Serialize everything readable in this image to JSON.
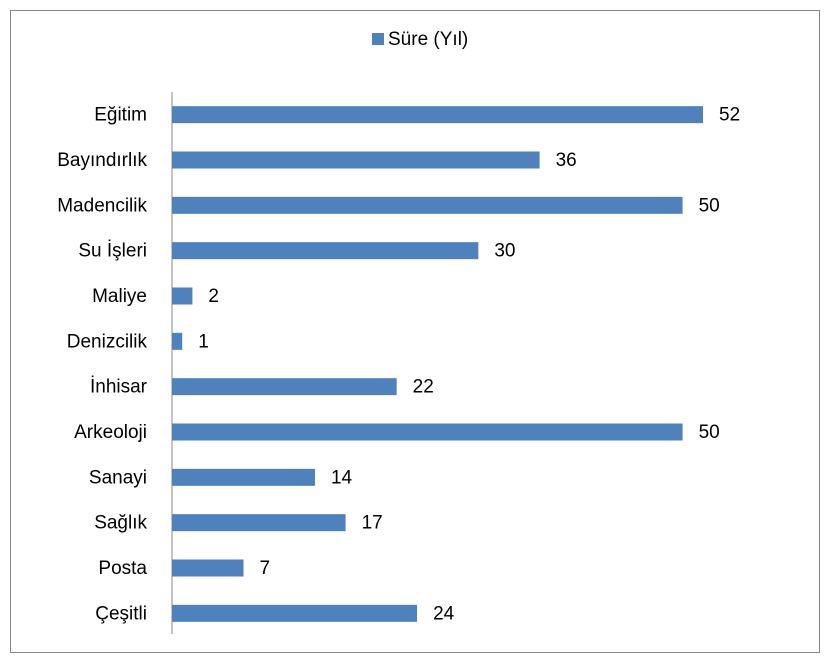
{
  "chart_data": {
    "type": "bar",
    "orientation": "horizontal",
    "categories": [
      "Eğitim",
      "Bayındırlık",
      "Madencilik",
      "Su İşleri",
      "Maliye",
      "Denizcilik",
      "İnhisar",
      "Arkeoloji",
      "Sanayi",
      "Sağlık",
      "Posta",
      "Çeşitli"
    ],
    "series": [
      {
        "name": "Süre (Yıl)",
        "color": "#4f81bd",
        "values": [
          52,
          36,
          50,
          30,
          2,
          1,
          22,
          50,
          14,
          17,
          7,
          24
        ]
      }
    ],
    "legend": "top"
  }
}
